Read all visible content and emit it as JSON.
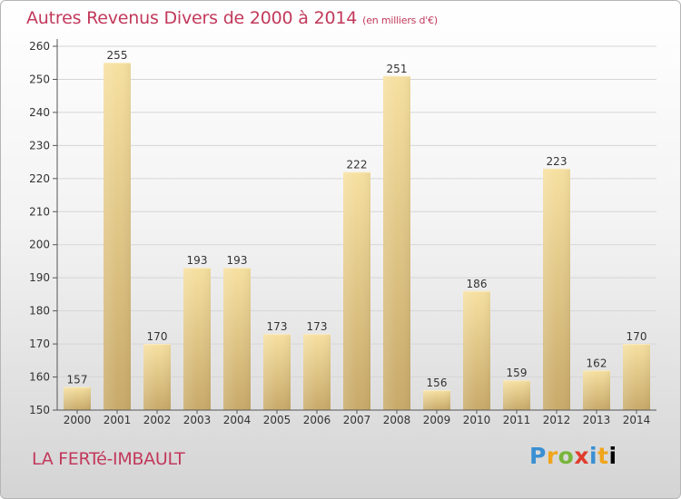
{
  "title": "Autres Revenus Divers de 2000 à 2014",
  "unit": "(en milliers d'€)",
  "commune": "LA FERTé-IMBAULT",
  "logo": [
    "P",
    "r",
    "o",
    "x",
    "i",
    "t",
    "i"
  ],
  "chart_data": {
    "type": "bar",
    "title": "Autres Revenus Divers de 2000 à 2014",
    "subtitle": "(en milliers d'€)",
    "xlabel": "",
    "ylabel": "",
    "categories": [
      "2000",
      "2001",
      "2002",
      "2003",
      "2004",
      "2005",
      "2006",
      "2007",
      "2008",
      "2009",
      "2010",
      "2011",
      "2012",
      "2013",
      "2014"
    ],
    "values": [
      157,
      255,
      170,
      193,
      193,
      173,
      173,
      222,
      251,
      156,
      186,
      159,
      223,
      162,
      170
    ],
    "ylim": [
      150,
      260
    ],
    "yticks": [
      150,
      160,
      170,
      180,
      190,
      200,
      210,
      220,
      230,
      240,
      250,
      260
    ],
    "grid": true,
    "colors": {
      "bar_light": "#f6e0a0",
      "bar_dark": "#c8aa6a",
      "text": "#333333",
      "grid": "#d6d6d6",
      "title": "#c2395b"
    }
  }
}
